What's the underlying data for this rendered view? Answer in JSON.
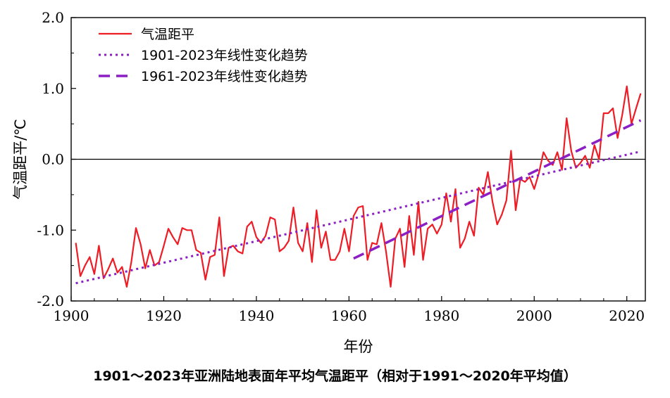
{
  "caption": "1901～2023年亚洲陆地表面年平均气温距平（相对于1991～2020年平均值）",
  "chart_data": {
    "type": "line",
    "xlabel": "年份",
    "ylabel": "气温距平/℃",
    "xlim": [
      1900,
      2024
    ],
    "ylim": [
      -2.0,
      2.0
    ],
    "xticks": [
      1900,
      1920,
      1940,
      1960,
      1980,
      2000,
      2020
    ],
    "yticks": [
      -2.0,
      -1.0,
      0.0,
      1.0,
      2.0
    ],
    "ytick_labels": [
      "-2.0",
      "-1.0",
      "0.0",
      "1.0",
      "2.0"
    ],
    "zero_line": true,
    "grid": false,
    "legend_position": "top-left",
    "colors": {
      "anomaly": "#ee1c25",
      "trend": "#8b1fc4"
    },
    "series": [
      {
        "name": "气温距平",
        "style": "solid",
        "x": [
          1901,
          1902,
          1903,
          1904,
          1905,
          1906,
          1907,
          1908,
          1909,
          1910,
          1911,
          1912,
          1913,
          1914,
          1915,
          1916,
          1917,
          1918,
          1919,
          1920,
          1921,
          1922,
          1923,
          1924,
          1925,
          1926,
          1927,
          1928,
          1929,
          1930,
          1931,
          1932,
          1933,
          1934,
          1935,
          1936,
          1937,
          1938,
          1939,
          1940,
          1941,
          1942,
          1943,
          1944,
          1945,
          1946,
          1947,
          1948,
          1949,
          1950,
          1951,
          1952,
          1953,
          1954,
          1955,
          1956,
          1957,
          1958,
          1959,
          1960,
          1961,
          1962,
          1963,
          1964,
          1965,
          1966,
          1967,
          1968,
          1969,
          1970,
          1971,
          1972,
          1973,
          1974,
          1975,
          1976,
          1977,
          1978,
          1979,
          1980,
          1981,
          1982,
          1983,
          1984,
          1985,
          1986,
          1987,
          1988,
          1989,
          1990,
          1991,
          1992,
          1993,
          1994,
          1995,
          1996,
          1997,
          1998,
          1999,
          2000,
          2001,
          2002,
          2003,
          2004,
          2005,
          2006,
          2007,
          2008,
          2009,
          2010,
          2011,
          2012,
          2013,
          2014,
          2015,
          2016,
          2017,
          2018,
          2019,
          2020,
          2021,
          2022,
          2023
        ],
        "y": [
          -1.18,
          -1.65,
          -1.5,
          -1.38,
          -1.62,
          -1.22,
          -1.68,
          -1.55,
          -1.4,
          -1.6,
          -1.52,
          -1.8,
          -1.45,
          -0.97,
          -1.2,
          -1.54,
          -1.28,
          -1.5,
          -1.45,
          -1.22,
          -0.98,
          -1.1,
          -1.2,
          -0.97,
          -1.0,
          -1.0,
          -1.28,
          -1.32,
          -1.7,
          -1.38,
          -1.35,
          -0.82,
          -1.65,
          -1.25,
          -1.22,
          -1.3,
          -1.33,
          -0.95,
          -0.88,
          -1.1,
          -1.18,
          -1.08,
          -0.82,
          -0.85,
          -1.3,
          -1.25,
          -1.15,
          -0.68,
          -1.18,
          -1.3,
          -0.9,
          -1.45,
          -0.72,
          -1.25,
          -1.02,
          -1.42,
          -1.42,
          -1.3,
          -0.98,
          -1.3,
          -0.8,
          -0.68,
          -0.66,
          -1.42,
          -1.18,
          -1.2,
          -0.9,
          -1.3,
          -1.8,
          -1.12,
          -0.98,
          -1.52,
          -0.8,
          -1.35,
          -0.6,
          -1.42,
          -0.98,
          -0.92,
          -1.05,
          -0.92,
          -0.48,
          -0.88,
          -0.42,
          -1.25,
          -1.12,
          -0.88,
          -1.08,
          -0.4,
          -0.5,
          -0.18,
          -0.6,
          -0.92,
          -0.78,
          -0.58,
          0.12,
          -0.72,
          -0.28,
          -0.32,
          -0.25,
          -0.42,
          -0.2,
          0.1,
          -0.02,
          -0.08,
          0.1,
          -0.15,
          0.58,
          0.12,
          -0.12,
          -0.05,
          0.05,
          -0.12,
          0.2,
          0.0,
          0.65,
          0.65,
          0.72,
          0.3,
          0.62,
          1.03,
          0.5,
          0.72,
          0.93
        ]
      },
      {
        "name": "1901-2023年线性变化趋势",
        "style": "dotted",
        "x": [
          1901,
          2023
        ],
        "y": [
          -1.75,
          0.11
        ]
      },
      {
        "name": "1961-2023年线性变化趋势",
        "style": "dashed",
        "x": [
          1961,
          2023
        ],
        "y": [
          -1.4,
          0.55
        ]
      }
    ]
  }
}
